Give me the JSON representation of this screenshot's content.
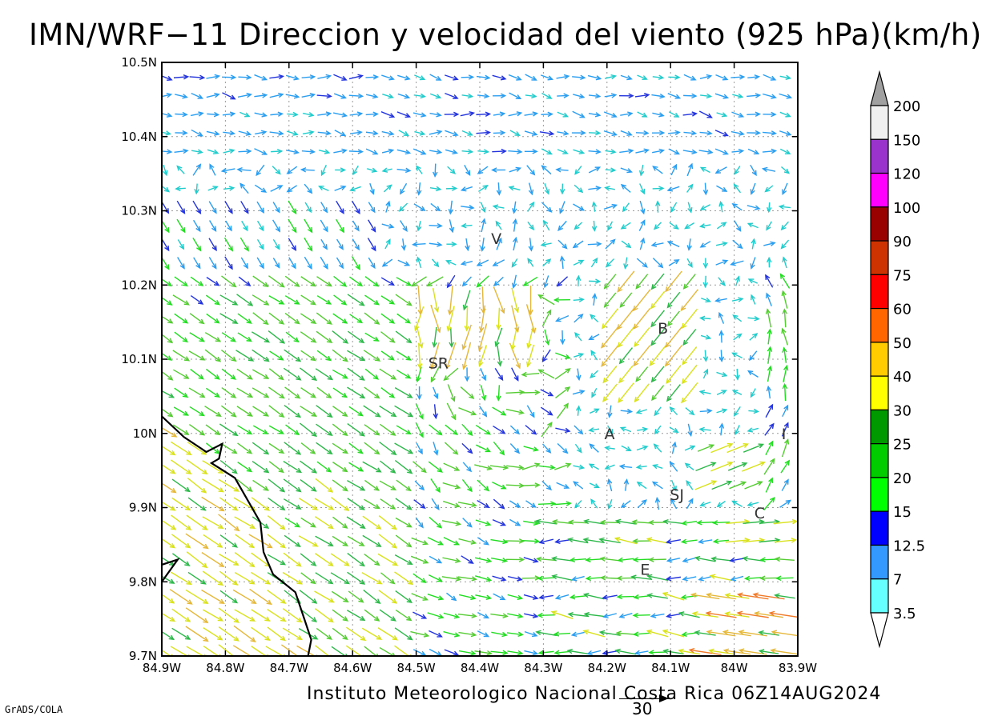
{
  "title": "IMN/WRF−11 Direccion y velocidad del viento (925 hPa)(km/h)",
  "credit": "Instituto Meteorologico Nacional Costa Rica 06Z14AUG2024",
  "tool": "GrADS/COLA",
  "reference_vector": {
    "label": "30",
    "speed_kmh": 30
  },
  "map": {
    "lon_range": [
      -84.9,
      -83.9
    ],
    "lat_range": [
      9.7,
      10.5
    ],
    "x_ticks": [
      "84.9W",
      "84.8W",
      "84.7W",
      "84.6W",
      "84.5W",
      "84.4W",
      "84.3W",
      "84.2W",
      "84.1W",
      "84W",
      "83.9W"
    ],
    "y_ticks": [
      "9.7N",
      "9.8N",
      "9.9N",
      "10N",
      "10.1N",
      "10.2N",
      "10.3N",
      "10.4N",
      "10.5N"
    ],
    "gridlines": "dotted",
    "coastline_color": "#000000",
    "places": [
      {
        "label": "V",
        "lon": -84.374,
        "lat": 10.263
      },
      {
        "label": "SR",
        "lon": -84.465,
        "lat": 10.095
      },
      {
        "label": "B",
        "lon": -84.112,
        "lat": 10.142
      },
      {
        "label": "A",
        "lon": -84.196,
        "lat": 10.0
      },
      {
        "label": "I",
        "lon": -83.922,
        "lat": 10.0
      },
      {
        "label": "SJ",
        "lon": -84.09,
        "lat": 9.918
      },
      {
        "label": "C",
        "lon": -83.96,
        "lat": 9.893
      },
      {
        "label": "E",
        "lon": -84.14,
        "lat": 9.817
      }
    ]
  },
  "colorbar": {
    "levels": [
      "200",
      "150",
      "120",
      "100",
      "90",
      "75",
      "60",
      "50",
      "40",
      "30",
      "25",
      "20",
      "15",
      "12.5",
      "7",
      "3.5"
    ],
    "colors": [
      "#a0a0a0",
      "#f0f0f0",
      "#9933cc",
      "#ff00ff",
      "#990000",
      "#cc3300",
      "#ff0000",
      "#ff6600",
      "#ffcc00",
      "#ffff00",
      "#009900",
      "#00cc00",
      "#00ff00",
      "#0000ff",
      "#3399ff",
      "#66ffff",
      "#ffffff"
    ]
  }
}
